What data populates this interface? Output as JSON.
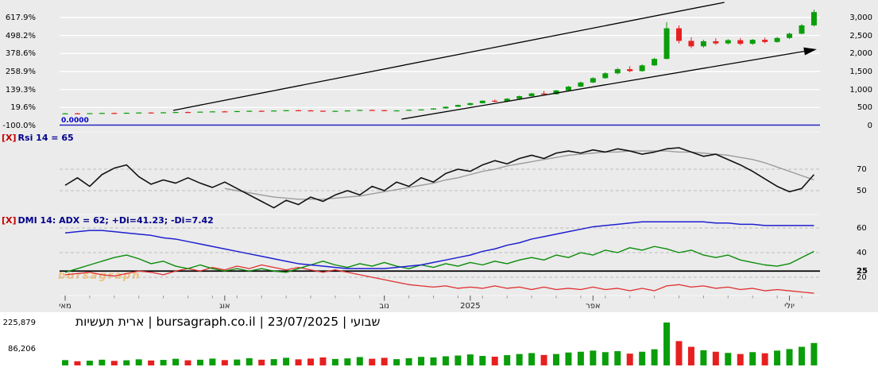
{
  "title_bar": {
    "text": "ארית תעשיות | bursagraph.co.il | 23/07/2025 | שבועי"
  },
  "watermark": "bursagraph",
  "colors": {
    "up": "#0a9e0a",
    "down": "#e62020",
    "trend": "#000000",
    "zero_line": "#2222bb",
    "rsi_line": "#111111",
    "rsi_signal": "#9c9c9c",
    "adx": "#1f1fd0",
    "plus_di": "#0a8c0a",
    "minus_di": "#e03030",
    "grid_price": "#ffffff",
    "grid_dash": "#bdbdbd",
    "level_line": "#000000"
  },
  "chart_data": {
    "type": "candlestick",
    "instrument": "ארית תעשיות",
    "source": "bursagraph.co.il",
    "date": "23/07/2025",
    "interval": "שבועי",
    "price_axis": [
      {
        "pct": "617.9%",
        "price": "3,000",
        "v": 3000
      },
      {
        "pct": "498.2%",
        "price": "2,500",
        "v": 2500
      },
      {
        "pct": "378.6%",
        "price": "2,000",
        "v": 2000
      },
      {
        "pct": "258.9%",
        "price": "1,500",
        "v": 1500
      },
      {
        "pct": "139.3%",
        "price": "1,000",
        "v": 1000
      },
      {
        "pct": "19.6%",
        "price": "500",
        "v": 500
      },
      {
        "pct": "-100.0%",
        "price": "0",
        "v": 0
      }
    ],
    "x_axis": [
      {
        "label": "מאי",
        "i": 0
      },
      {
        "label": "אוג",
        "i": 13
      },
      {
        "label": "נוב",
        "i": 26
      },
      {
        "label": "2025",
        "i": 33
      },
      {
        "label": "אפר",
        "i": 43
      },
      {
        "label": "יולי",
        "i": 59
      }
    ],
    "overlays": {
      "zero_line": {
        "label": "0.0000",
        "value": 0
      }
    },
    "trend_channel": [
      {
        "i1": 8.8,
        "p1": 420,
        "i2": 53.7,
        "p2": 3420,
        "arrow": false
      },
      {
        "i1": 27.4,
        "p1": 176,
        "i2": 60.2,
        "p2": 2060,
        "arrow": true
      }
    ],
    "candles_ohlc": [
      [
        332,
        346,
        322,
        338
      ],
      [
        338,
        350,
        330,
        332
      ],
      [
        332,
        344,
        324,
        342
      ],
      [
        342,
        354,
        334,
        348
      ],
      [
        348,
        356,
        338,
        344
      ],
      [
        344,
        358,
        340,
        354
      ],
      [
        354,
        366,
        346,
        360
      ],
      [
        360,
        368,
        350,
        352
      ],
      [
        352,
        370,
        348,
        366
      ],
      [
        366,
        380,
        358,
        374
      ],
      [
        374,
        386,
        364,
        370
      ],
      [
        370,
        388,
        366,
        384
      ],
      [
        384,
        398,
        376,
        392
      ],
      [
        392,
        404,
        382,
        388
      ],
      [
        388,
        406,
        384,
        400
      ],
      [
        400,
        414,
        392,
        408
      ],
      [
        408,
        420,
        398,
        402
      ],
      [
        402,
        422,
        398,
        416
      ],
      [
        416,
        430,
        408,
        424
      ],
      [
        424,
        436,
        414,
        420
      ],
      [
        420,
        432,
        404,
        410
      ],
      [
        410,
        418,
        390,
        398
      ],
      [
        398,
        412,
        388,
        406
      ],
      [
        406,
        424,
        400,
        418
      ],
      [
        418,
        438,
        412,
        432
      ],
      [
        432,
        444,
        418,
        426
      ],
      [
        426,
        432,
        400,
        408
      ],
      [
        408,
        426,
        402,
        420
      ],
      [
        420,
        442,
        414,
        436
      ],
      [
        436,
        452,
        430,
        446
      ],
      [
        446,
        482,
        440,
        475
      ],
      [
        475,
        528,
        468,
        520
      ],
      [
        520,
        578,
        512,
        570
      ],
      [
        570,
        634,
        562,
        620
      ],
      [
        620,
        700,
        612,
        688
      ],
      [
        688,
        720,
        650,
        668
      ],
      [
        668,
        760,
        660,
        745
      ],
      [
        745,
        830,
        735,
        815
      ],
      [
        815,
        905,
        800,
        890
      ],
      [
        890,
        960,
        850,
        870
      ],
      [
        870,
        990,
        860,
        975
      ],
      [
        975,
        1100,
        962,
        1080
      ],
      [
        1080,
        1220,
        1065,
        1195
      ],
      [
        1195,
        1340,
        1178,
        1315
      ],
      [
        1315,
        1480,
        1300,
        1450
      ],
      [
        1450,
        1600,
        1420,
        1565
      ],
      [
        1565,
        1650,
        1480,
        1510
      ],
      [
        1510,
        1700,
        1495,
        1670
      ],
      [
        1670,
        1880,
        1655,
        1850
      ],
      [
        1850,
        2870,
        1840,
        2700
      ],
      [
        2700,
        2780,
        2280,
        2350
      ],
      [
        2350,
        2450,
        2150,
        2200
      ],
      [
        2200,
        2380,
        2160,
        2340
      ],
      [
        2340,
        2420,
        2240,
        2280
      ],
      [
        2280,
        2400,
        2250,
        2370
      ],
      [
        2370,
        2430,
        2230,
        2270
      ],
      [
        2270,
        2400,
        2240,
        2380
      ],
      [
        2380,
        2440,
        2280,
        2320
      ],
      [
        2320,
        2460,
        2300,
        2430
      ],
      [
        2430,
        2580,
        2400,
        2550
      ],
      [
        2550,
        2820,
        2530,
        2780
      ],
      [
        2780,
        3220,
        2750,
        3150
      ]
    ],
    "volume": {
      "axis": [
        {
          "label": "225,879",
          "v": 225879
        },
        {
          "label": "86,206",
          "v": 86206
        }
      ],
      "values": [
        28000,
        22000,
        25000,
        30000,
        24000,
        27000,
        32000,
        26000,
        29000,
        35000,
        27000,
        30000,
        36000,
        28000,
        31000,
        38000,
        30000,
        33000,
        40000,
        32000,
        36000,
        42000,
        34000,
        37000,
        44000,
        35000,
        40000,
        33000,
        38000,
        45000,
        42000,
        48000,
        52000,
        58000,
        50000,
        46000,
        54000,
        60000,
        65000,
        55000,
        60000,
        68000,
        72000,
        78000,
        70000,
        75000,
        62000,
        72000,
        85000,
        225879,
        128000,
        98000,
        80000,
        72000,
        66000,
        60000,
        70000,
        64000,
        78000,
        86206,
        98000,
        118000
      ]
    },
    "rsi": {
      "close_mark": "[X]",
      "label": "Rsi 14 = 65",
      "axis": [
        {
          "label": "70",
          "v": 70
        },
        {
          "label": "50",
          "v": 50
        }
      ],
      "line": [
        55,
        62,
        54,
        65,
        71,
        74,
        63,
        56,
        60,
        57,
        62,
        57,
        53,
        58,
        52,
        46,
        40,
        34,
        41,
        37,
        44,
        40,
        46,
        50,
        46,
        54,
        50,
        58,
        54,
        62,
        58,
        66,
        70,
        68,
        74,
        78,
        75,
        80,
        83,
        80,
        85,
        87,
        85,
        88,
        86,
        89,
        87,
        84,
        86,
        89,
        90,
        86,
        82,
        84,
        79,
        74,
        68,
        61,
        54,
        49,
        52,
        65
      ],
      "signal": [
        null,
        null,
        null,
        null,
        null,
        null,
        null,
        null,
        null,
        null,
        null,
        null,
        null,
        52,
        50,
        48,
        46,
        44,
        43,
        42,
        42,
        42,
        43,
        44,
        45,
        47,
        49,
        51,
        53,
        55,
        57,
        60,
        62,
        65,
        68,
        70,
        73,
        75,
        77,
        79,
        81,
        83,
        84,
        85,
        86,
        86,
        87,
        87,
        87,
        87,
        86,
        86,
        85,
        84,
        83,
        81,
        79,
        76,
        72,
        68,
        64,
        60
      ]
    },
    "dmi": {
      "close_mark": "[X]",
      "label": "DMI 14: ADX = 62; +Di=41.23; -Di=7.42",
      "level": 25,
      "axis": [
        {
          "label": "60",
          "v": 60
        },
        {
          "label": "40",
          "v": 40
        },
        {
          "label": "25",
          "v": 25,
          "bold": true
        },
        {
          "label": "20",
          "v": 20
        }
      ],
      "adx": [
        56,
        57,
        58,
        58,
        57,
        56,
        55,
        54,
        52,
        51,
        49,
        47,
        45,
        43,
        41,
        39,
        37,
        35,
        33,
        31,
        30,
        29,
        28,
        27,
        27,
        27,
        27,
        28,
        29,
        30,
        32,
        34,
        36,
        38,
        41,
        43,
        46,
        48,
        51,
        53,
        55,
        57,
        59,
        61,
        62,
        63,
        64,
        65,
        65,
        65,
        65,
        65,
        65,
        64,
        64,
        63,
        63,
        62,
        62,
        62,
        62,
        62
      ],
      "plus_di": [
        24,
        27,
        30,
        33,
        36,
        38,
        35,
        31,
        33,
        29,
        27,
        30,
        27,
        25,
        27,
        25,
        27,
        25,
        24,
        27,
        30,
        33,
        30,
        28,
        31,
        29,
        32,
        29,
        27,
        30,
        28,
        31,
        29,
        32,
        30,
        33,
        31,
        34,
        36,
        34,
        38,
        36,
        40,
        38,
        42,
        40,
        44,
        42,
        45,
        43,
        40,
        42,
        38,
        36,
        38,
        34,
        32,
        30,
        29,
        31,
        36,
        41
      ],
      "minus_di": [
        22,
        23,
        24,
        22,
        21,
        23,
        25,
        24,
        22,
        25,
        27,
        25,
        28,
        26,
        29,
        27,
        30,
        28,
        26,
        28,
        26,
        24,
        26,
        24,
        22,
        20,
        18,
        16,
        14,
        13,
        12,
        13,
        11,
        12,
        11,
        13,
        11,
        12,
        10,
        12,
        10,
        11,
        10,
        12,
        10,
        11,
        9,
        11,
        9,
        13,
        14,
        12,
        13,
        11,
        12,
        10,
        11,
        9,
        10,
        9,
        8,
        7
      ]
    }
  }
}
